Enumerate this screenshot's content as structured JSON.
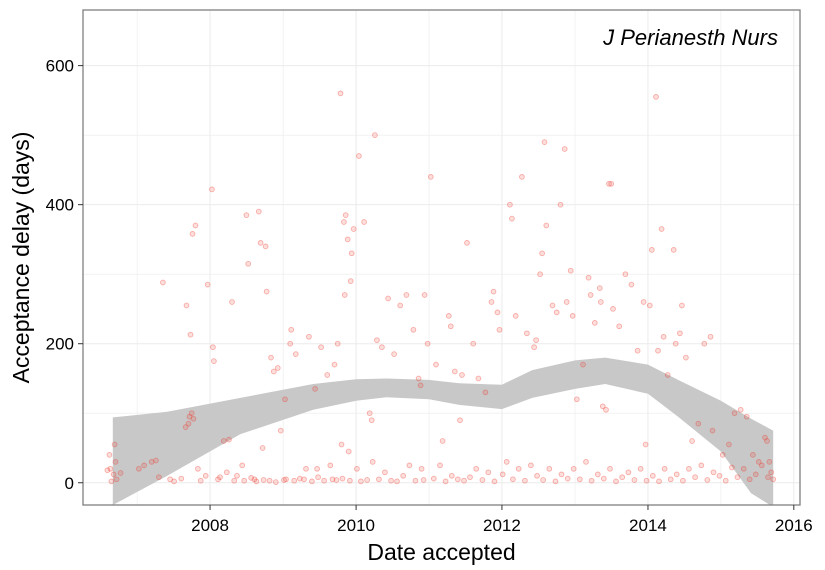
{
  "chart_data": {
    "type": "scatter",
    "title": "J Perianesth Nurs",
    "xlabel": "Date accepted",
    "ylabel": "Acceptance delay (days)",
    "x_ticks": [
      "2008",
      "2010",
      "2012",
      "2014",
      "2016"
    ],
    "y_ticks": [
      "0",
      "200",
      "400",
      "600"
    ],
    "xlim": [
      "2006-04-05",
      "2016-02-01"
    ],
    "ylim": [
      -32,
      680
    ],
    "grid": true,
    "legend": "none",
    "colors": {
      "points": "#ef3b2c",
      "band": "#c8c8c8",
      "grid": "#ebebeb",
      "border": "#7f7f7f"
    },
    "smooth": {
      "x": [
        "2006-09-01",
        "2007-06-01",
        "2008-06-01",
        "2009-06-01",
        "2010-01-01",
        "2010-06-01",
        "2011-01-01",
        "2011-06-01",
        "2012-01-01",
        "2012-06-01",
        "2013-01-01",
        "2013-06-01",
        "2014-01-01",
        "2014-06-01",
        "2015-01-01",
        "2015-06-01",
        "2015-09-20"
      ],
      "upper": [
        94,
        102,
        122,
        142,
        149,
        150,
        148,
        143,
        141,
        162,
        176,
        180,
        170,
        148,
        118,
        92,
        75
      ],
      "lower": [
        -32,
        10,
        70,
        105,
        118,
        123,
        120,
        112,
        106,
        122,
        135,
        142,
        128,
        95,
        45,
        -15,
        -35
      ]
    },
    "points": [
      [
        "2006-09-10",
        55
      ],
      [
        "2006-08-15",
        40
      ],
      [
        "2006-08-20",
        20
      ],
      [
        "2006-08-05",
        18
      ],
      [
        "2006-09-05",
        12
      ],
      [
        "2006-09-20",
        5
      ],
      [
        "2006-08-25",
        2
      ],
      [
        "2006-10-10",
        14
      ],
      [
        "2006-09-15",
        30
      ],
      [
        "2007-01-10",
        20
      ],
      [
        "2007-02-05",
        25
      ],
      [
        "2007-03-15",
        30
      ],
      [
        "2007-04-05",
        32
      ],
      [
        "2007-04-20",
        8
      ],
      [
        "2007-05-10",
        288
      ],
      [
        "2007-06-15",
        5
      ],
      [
        "2007-07-05",
        2
      ],
      [
        "2007-08-10",
        6
      ],
      [
        "2007-09-01",
        80
      ],
      [
        "2007-09-15",
        85
      ],
      [
        "2007-09-20",
        95
      ],
      [
        "2007-10-01",
        100
      ],
      [
        "2007-10-10",
        92
      ],
      [
        "2007-09-05",
        255
      ],
      [
        "2007-09-25",
        213
      ],
      [
        "2007-10-05",
        358
      ],
      [
        "2007-10-20",
        370
      ],
      [
        "2007-11-15",
        3
      ],
      [
        "2007-12-10",
        10
      ],
      [
        "2007-12-20",
        285
      ],
      [
        "2008-01-10",
        422
      ],
      [
        "2008-01-15",
        195
      ],
      [
        "2008-01-20",
        175
      ],
      [
        "2008-02-10",
        5
      ],
      [
        "2008-03-10",
        60
      ],
      [
        "2008-04-05",
        62
      ],
      [
        "2008-04-20",
        260
      ],
      [
        "2008-05-15",
        10
      ],
      [
        "2008-06-10",
        25
      ],
      [
        "2008-07-01",
        385
      ],
      [
        "2008-07-10",
        315
      ],
      [
        "2008-08-10",
        5
      ],
      [
        "2008-09-01",
        390
      ],
      [
        "2008-09-10",
        345
      ],
      [
        "2008-09-20",
        50
      ],
      [
        "2008-10-05",
        340
      ],
      [
        "2008-10-10",
        275
      ],
      [
        "2008-11-01",
        180
      ],
      [
        "2008-11-15",
        160
      ],
      [
        "2008-12-05",
        165
      ],
      [
        "2008-12-20",
        75
      ],
      [
        "2009-01-10",
        120
      ],
      [
        "2009-01-15",
        5
      ],
      [
        "2009-02-05",
        200
      ],
      [
        "2009-02-10",
        220
      ],
      [
        "2009-03-05",
        185
      ],
      [
        "2009-04-15",
        5
      ],
      [
        "2009-05-10",
        210
      ],
      [
        "2009-06-10",
        135
      ],
      [
        "2009-06-20",
        20
      ],
      [
        "2009-07-10",
        195
      ],
      [
        "2009-08-10",
        155
      ],
      [
        "2009-09-05",
        5
      ],
      [
        "2009-09-15",
        170
      ],
      [
        "2009-10-01",
        200
      ],
      [
        "2009-10-15",
        560
      ],
      [
        "2009-11-01",
        375
      ],
      [
        "2009-11-10",
        385
      ],
      [
        "2009-11-20",
        350
      ],
      [
        "2009-12-05",
        290
      ],
      [
        "2009-12-10",
        330
      ],
      [
        "2009-12-20",
        365
      ],
      [
        "2009-11-05",
        270
      ],
      [
        "2009-10-20",
        55
      ],
      [
        "2009-11-25",
        45
      ],
      [
        "2010-01-15",
        470
      ],
      [
        "2010-02-10",
        375
      ],
      [
        "2010-03-10",
        100
      ],
      [
        "2010-03-20",
        90
      ],
      [
        "2010-04-05",
        500
      ],
      [
        "2010-04-15",
        205
      ],
      [
        "2010-05-10",
        195
      ],
      [
        "2010-06-10",
        265
      ],
      [
        "2010-07-10",
        185
      ],
      [
        "2010-08-10",
        255
      ],
      [
        "2010-09-10",
        270
      ],
      [
        "2010-10-15",
        220
      ],
      [
        "2010-11-10",
        150
      ],
      [
        "2010-11-20",
        140
      ],
      [
        "2010-12-10",
        270
      ],
      [
        "2010-12-25",
        200
      ],
      [
        "2011-01-10",
        440
      ],
      [
        "2011-02-05",
        170
      ],
      [
        "2011-03-10",
        60
      ],
      [
        "2011-04-10",
        240
      ],
      [
        "2011-04-20",
        225
      ],
      [
        "2011-05-10",
        160
      ],
      [
        "2011-06-05",
        90
      ],
      [
        "2011-06-15",
        155
      ],
      [
        "2011-07-10",
        345
      ],
      [
        "2011-08-10",
        200
      ],
      [
        "2011-09-05",
        150
      ],
      [
        "2011-10-10",
        130
      ],
      [
        "2011-11-10",
        260
      ],
      [
        "2011-11-20",
        275
      ],
      [
        "2011-12-10",
        245
      ],
      [
        "2011-12-20",
        220
      ],
      [
        "2012-02-10",
        400
      ],
      [
        "2012-02-20",
        380
      ],
      [
        "2012-03-10",
        240
      ],
      [
        "2012-04-10",
        440
      ],
      [
        "2012-05-05",
        215
      ],
      [
        "2012-06-10",
        195
      ],
      [
        "2012-06-20",
        205
      ],
      [
        "2012-07-10",
        300
      ],
      [
        "2012-07-20",
        330
      ],
      [
        "2012-08-01",
        490
      ],
      [
        "2012-08-10",
        370
      ],
      [
        "2012-09-10",
        255
      ],
      [
        "2012-10-01",
        245
      ],
      [
        "2012-10-20",
        400
      ],
      [
        "2012-11-10",
        480
      ],
      [
        "2012-11-20",
        260
      ],
      [
        "2012-12-10",
        305
      ],
      [
        "2012-12-20",
        240
      ],
      [
        "2013-01-10",
        120
      ],
      [
        "2013-02-10",
        170
      ],
      [
        "2013-03-10",
        295
      ],
      [
        "2013-03-20",
        270
      ],
      [
        "2013-04-10",
        230
      ],
      [
        "2013-05-05",
        280
      ],
      [
        "2013-05-10",
        260
      ],
      [
        "2013-05-20",
        110
      ],
      [
        "2013-06-05",
        105
      ],
      [
        "2013-06-20",
        430
      ],
      [
        "2013-07-01",
        430
      ],
      [
        "2013-07-10",
        250
      ],
      [
        "2013-08-10",
        225
      ],
      [
        "2013-09-10",
        300
      ],
      [
        "2013-10-10",
        285
      ],
      [
        "2013-11-10",
        190
      ],
      [
        "2013-12-10",
        260
      ],
      [
        "2013-12-20",
        55
      ],
      [
        "2014-01-10",
        255
      ],
      [
        "2014-01-20",
        335
      ],
      [
        "2014-02-10",
        555
      ],
      [
        "2014-02-20",
        190
      ],
      [
        "2014-03-10",
        365
      ],
      [
        "2014-03-20",
        210
      ],
      [
        "2014-04-10",
        155
      ],
      [
        "2014-05-10",
        335
      ],
      [
        "2014-05-20",
        200
      ],
      [
        "2014-06-10",
        215
      ],
      [
        "2014-06-20",
        255
      ],
      [
        "2014-07-10",
        180
      ],
      [
        "2014-08-10",
        60
      ],
      [
        "2014-09-10",
        85
      ],
      [
        "2014-10-10",
        200
      ],
      [
        "2014-11-10",
        210
      ],
      [
        "2014-11-20",
        75
      ],
      [
        "2015-01-10",
        40
      ],
      [
        "2015-02-10",
        55
      ],
      [
        "2015-03-10",
        100
      ],
      [
        "2015-04-10",
        105
      ],
      [
        "2015-05-10",
        95
      ],
      [
        "2015-06-10",
        40
      ],
      [
        "2015-07-10",
        30
      ],
      [
        "2015-08-10",
        65
      ],
      [
        "2015-08-20",
        60
      ],
      [
        "2015-09-01",
        30
      ],
      [
        "2015-09-10",
        15
      ],
      [
        "2015-09-20",
        5
      ],
      [
        "2007-11-01",
        20
      ],
      [
        "2008-02-20",
        8
      ],
      [
        "2008-03-25",
        15
      ],
      [
        "2008-05-01",
        3
      ],
      [
        "2008-06-20",
        3
      ],
      [
        "2008-07-25",
        7
      ],
      [
        "2008-08-20",
        2
      ],
      [
        "2008-09-25",
        4
      ],
      [
        "2008-10-25",
        3
      ],
      [
        "2008-11-25",
        1
      ],
      [
        "2009-01-05",
        4
      ],
      [
        "2009-02-25",
        3
      ],
      [
        "2009-03-25",
        6
      ],
      [
        "2009-04-25",
        20
      ],
      [
        "2009-05-25",
        2
      ],
      [
        "2009-06-25",
        8
      ],
      [
        "2009-07-25",
        3
      ],
      [
        "2009-08-25",
        25
      ],
      [
        "2009-09-25",
        4
      ],
      [
        "2009-10-25",
        6
      ],
      [
        "2009-12-01",
        3
      ],
      [
        "2010-01-05",
        20
      ],
      [
        "2010-01-25",
        2
      ],
      [
        "2010-02-25",
        4
      ],
      [
        "2010-03-25",
        30
      ],
      [
        "2010-04-25",
        5
      ],
      [
        "2010-05-25",
        15
      ],
      [
        "2010-06-25",
        3
      ],
      [
        "2010-07-25",
        2
      ],
      [
        "2010-08-25",
        10
      ],
      [
        "2010-09-25",
        25
      ],
      [
        "2010-10-25",
        3
      ],
      [
        "2010-11-25",
        20
      ],
      [
        "2010-12-05",
        4
      ],
      [
        "2011-01-25",
        6
      ],
      [
        "2011-02-25",
        25
      ],
      [
        "2011-03-25",
        2
      ],
      [
        "2011-04-25",
        10
      ],
      [
        "2011-05-25",
        5
      ],
      [
        "2011-06-25",
        3
      ],
      [
        "2011-07-25",
        8
      ],
      [
        "2011-08-25",
        20
      ],
      [
        "2011-09-25",
        4
      ],
      [
        "2011-10-25",
        15
      ],
      [
        "2011-11-25",
        2
      ],
      [
        "2012-01-05",
        12
      ],
      [
        "2012-01-25",
        30
      ],
      [
        "2012-02-25",
        5
      ],
      [
        "2012-03-25",
        20
      ],
      [
        "2012-04-25",
        3
      ],
      [
        "2012-05-25",
        25
      ],
      [
        "2012-06-25",
        10
      ],
      [
        "2012-07-25",
        4
      ],
      [
        "2012-08-25",
        20
      ],
      [
        "2012-09-25",
        2
      ],
      [
        "2012-10-25",
        12
      ],
      [
        "2012-11-25",
        6
      ],
      [
        "2012-12-25",
        20
      ],
      [
        "2013-01-25",
        5
      ],
      [
        "2013-02-25",
        30
      ],
      [
        "2013-03-25",
        3
      ],
      [
        "2013-04-25",
        12
      ],
      [
        "2013-05-25",
        6
      ],
      [
        "2013-06-25",
        20
      ],
      [
        "2013-07-25",
        2
      ],
      [
        "2013-08-25",
        8
      ],
      [
        "2013-09-25",
        15
      ],
      [
        "2013-10-25",
        4
      ],
      [
        "2013-11-25",
        20
      ],
      [
        "2013-12-25",
        3
      ],
      [
        "2014-01-25",
        10
      ],
      [
        "2014-02-25",
        2
      ],
      [
        "2014-03-25",
        20
      ],
      [
        "2014-04-25",
        5
      ],
      [
        "2014-05-25",
        12
      ],
      [
        "2014-06-25",
        3
      ],
      [
        "2014-07-25",
        20
      ],
      [
        "2014-08-25",
        8
      ],
      [
        "2014-09-25",
        25
      ],
      [
        "2014-10-25",
        4
      ],
      [
        "2014-11-25",
        15
      ],
      [
        "2014-12-25",
        10
      ],
      [
        "2015-01-25",
        3
      ],
      [
        "2015-02-25",
        22
      ],
      [
        "2015-03-25",
        8
      ],
      [
        "2015-04-25",
        20
      ],
      [
        "2015-05-25",
        5
      ],
      [
        "2015-06-25",
        12
      ],
      [
        "2015-07-25",
        25
      ],
      [
        "2015-08-25",
        8
      ]
    ]
  }
}
